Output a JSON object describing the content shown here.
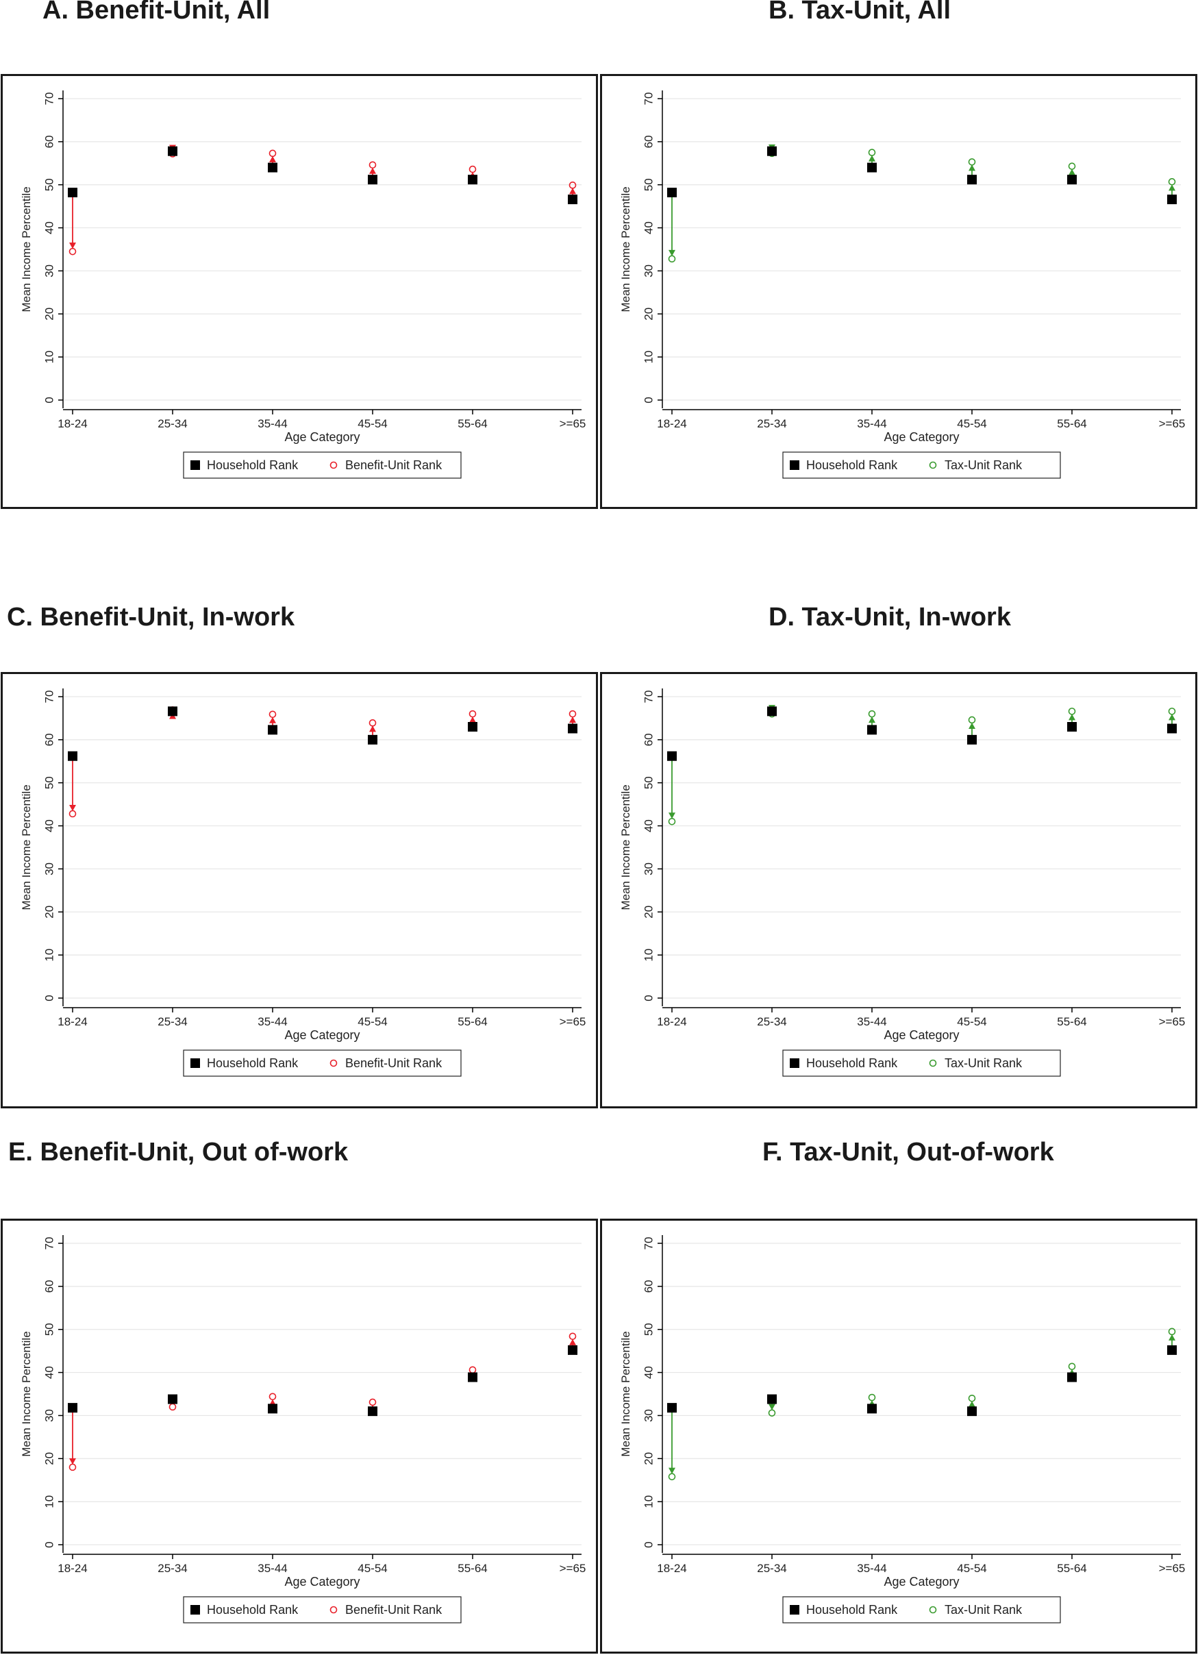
{
  "colors": {
    "household": "#000000",
    "benefit_unit": "#e8202a",
    "tax_unit": "#3a9b2f",
    "grid": "#e6e6e6",
    "axis": "#000000"
  },
  "chart_data": [
    {
      "type": "scatter",
      "panel_title": "A. Benefit-Unit, All",
      "xlabel": "Age Category",
      "ylabel": "Mean Income Percentile",
      "categories": [
        "18-24",
        "25-34",
        "35-44",
        "45-54",
        "55-64",
        ">=65"
      ],
      "ylim": [
        0,
        70
      ],
      "yticks": [
        0,
        10,
        20,
        30,
        40,
        50,
        60,
        70
      ],
      "grid": true,
      "legend_position": "bottom-center",
      "arrows": true,
      "accent": "benefit_unit",
      "series": [
        {
          "name": "Household Rank",
          "marker": "filled-square",
          "values": [
            48.2,
            57.8,
            54.0,
            51.2,
            51.2,
            46.6
          ]
        },
        {
          "name": "Benefit-Unit Rank",
          "marker": "hollow-circle",
          "values": [
            34.5,
            57.2,
            57.3,
            54.6,
            53.6,
            49.9
          ]
        }
      ]
    },
    {
      "type": "scatter",
      "panel_title": "B. Tax-Unit, All",
      "xlabel": "Age Category",
      "ylabel": "Mean Income Percentile",
      "categories": [
        "18-24",
        "25-34",
        "35-44",
        "45-54",
        "55-64",
        ">=65"
      ],
      "ylim": [
        0,
        70
      ],
      "yticks": [
        0,
        10,
        20,
        30,
        40,
        50,
        60,
        70
      ],
      "grid": true,
      "legend_position": "bottom-center",
      "arrows": true,
      "accent": "tax_unit",
      "series": [
        {
          "name": "Household Rank",
          "marker": "filled-square",
          "values": [
            48.2,
            57.8,
            54.0,
            51.2,
            51.2,
            46.6
          ]
        },
        {
          "name": "Tax-Unit Rank",
          "marker": "hollow-circle",
          "values": [
            32.8,
            57.3,
            57.5,
            55.3,
            54.3,
            50.7
          ]
        }
      ]
    },
    {
      "type": "scatter",
      "panel_title": "C. Benefit-Unit, In-work",
      "xlabel": "Age Category",
      "ylabel": "Mean Income Percentile",
      "categories": [
        "18-24",
        "25-34",
        "35-44",
        "45-54",
        "55-64",
        ">=65"
      ],
      "ylim": [
        0,
        70
      ],
      "yticks": [
        0,
        10,
        20,
        30,
        40,
        50,
        60,
        70
      ],
      "grid": true,
      "legend_position": "bottom-center",
      "arrows": true,
      "accent": "benefit_unit",
      "series": [
        {
          "name": "Household Rank",
          "marker": "filled-square",
          "values": [
            56.2,
            66.6,
            62.3,
            60.0,
            63.0,
            62.6
          ]
        },
        {
          "name": "Benefit-Unit Rank",
          "marker": "hollow-circle",
          "values": [
            42.8,
            66.9,
            65.9,
            63.9,
            66.0,
            66.0
          ]
        }
      ]
    },
    {
      "type": "scatter",
      "panel_title": "D. Tax-Unit, In-work",
      "xlabel": "Age Category",
      "ylabel": "Mean Income Percentile",
      "categories": [
        "18-24",
        "25-34",
        "35-44",
        "45-54",
        "55-64",
        ">=65"
      ],
      "ylim": [
        0,
        70
      ],
      "yticks": [
        0,
        10,
        20,
        30,
        40,
        50,
        60,
        70
      ],
      "grid": true,
      "legend_position": "bottom-center",
      "arrows": true,
      "accent": "tax_unit",
      "series": [
        {
          "name": "Household Rank",
          "marker": "filled-square",
          "values": [
            56.2,
            66.6,
            62.3,
            60.0,
            63.0,
            62.6
          ]
        },
        {
          "name": "Tax-Unit Rank",
          "marker": "hollow-circle",
          "values": [
            41.0,
            66.0,
            66.0,
            64.6,
            66.6,
            66.6
          ]
        }
      ]
    },
    {
      "type": "scatter",
      "panel_title": "E. Benefit-Unit, Out of-work",
      "xlabel": "Age Category",
      "ylabel": "Mean Income Percentile",
      "categories": [
        "18-24",
        "25-34",
        "35-44",
        "45-54",
        "55-64",
        ">=65"
      ],
      "ylim": [
        0,
        70
      ],
      "yticks": [
        0,
        10,
        20,
        30,
        40,
        50,
        60,
        70
      ],
      "grid": true,
      "legend_position": "bottom-center",
      "arrows": true,
      "accent": "benefit_unit",
      "series": [
        {
          "name": "Household Rank",
          "marker": "filled-square",
          "values": [
            31.8,
            33.8,
            31.6,
            31.0,
            38.9,
            45.2
          ]
        },
        {
          "name": "Benefit-Unit Rank",
          "marker": "hollow-circle",
          "values": [
            18.0,
            32.0,
            34.4,
            33.1,
            40.6,
            48.4
          ]
        }
      ]
    },
    {
      "type": "scatter",
      "panel_title": "F. Tax-Unit, Out-of-work",
      "xlabel": "Age Category",
      "ylabel": "Mean Income Percentile",
      "categories": [
        "18-24",
        "25-34",
        "35-44",
        "45-54",
        "55-64",
        ">=65"
      ],
      "ylim": [
        0,
        70
      ],
      "yticks": [
        0,
        10,
        20,
        30,
        40,
        50,
        60,
        70
      ],
      "grid": true,
      "legend_position": "bottom-center",
      "arrows": true,
      "accent": "tax_unit",
      "series": [
        {
          "name": "Household Rank",
          "marker": "filled-square",
          "values": [
            31.8,
            33.8,
            31.6,
            31.0,
            38.9,
            45.2
          ]
        },
        {
          "name": "Tax-Unit Rank",
          "marker": "hollow-circle",
          "values": [
            15.8,
            30.6,
            34.2,
            34.0,
            41.4,
            49.5
          ]
        }
      ]
    }
  ]
}
